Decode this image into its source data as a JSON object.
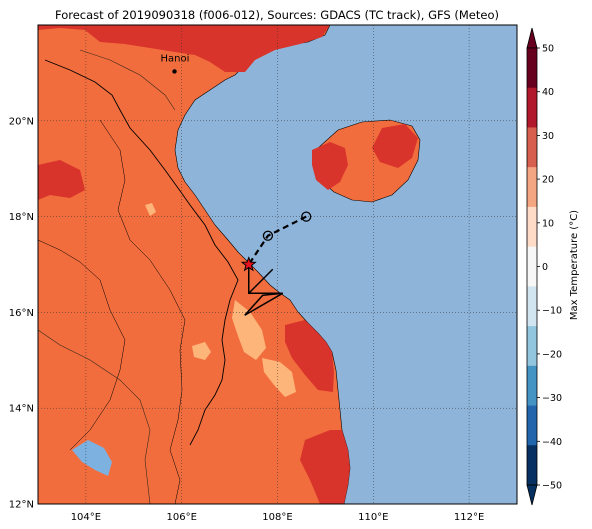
{
  "title": "Forecast of 2019090318 (f006-012), Sources: GDACS (TC track), GFS (Meteo)",
  "map": {
    "lon_range": [
      103,
      113
    ],
    "lat_range": [
      12,
      22
    ],
    "lon_ticks": [
      104,
      106,
      108,
      110,
      112
    ],
    "lat_ticks": [
      12,
      14,
      16,
      18,
      20
    ],
    "lon_tick_labels": [
      "104°E",
      "106°E",
      "108°E",
      "110°E",
      "112°E"
    ],
    "lat_tick_labels": [
      "12°N",
      "14°N",
      "16°N",
      "18°N",
      "20°N"
    ],
    "grid": true
  },
  "city": {
    "name": "Hanoi",
    "lon": 105.85,
    "lat": 21.03
  },
  "track": {
    "points": [
      {
        "lon": 108.6,
        "lat": 18.0,
        "marker": "circle"
      },
      {
        "lon": 107.8,
        "lat": 17.6,
        "marker": "circle"
      },
      {
        "lon": 107.4,
        "lat": 17.0,
        "marker": "star"
      }
    ]
  },
  "wind_barb": {
    "lon": 107.4,
    "lat": 16.4
  },
  "colorbar": {
    "label": "Max Temperature (°C)",
    "ticks": [
      "50",
      "40",
      "30",
      "20",
      "10",
      "0",
      "−10",
      "−20",
      "−30",
      "−40",
      "−50"
    ],
    "colors": [
      "#67001f",
      "#b2182b",
      "#d6604d",
      "#f4a582",
      "#fddbc7",
      "#f7f7f7",
      "#d1e5f0",
      "#92c5de",
      "#4393c3",
      "#2166ac",
      "#053061"
    ]
  },
  "palette": {
    "sea": "#8fb4d9",
    "land": "#f26d3d",
    "land_hot": "#d9342b",
    "land_mild": "#fdb57a",
    "lake": "#7db1e0"
  }
}
